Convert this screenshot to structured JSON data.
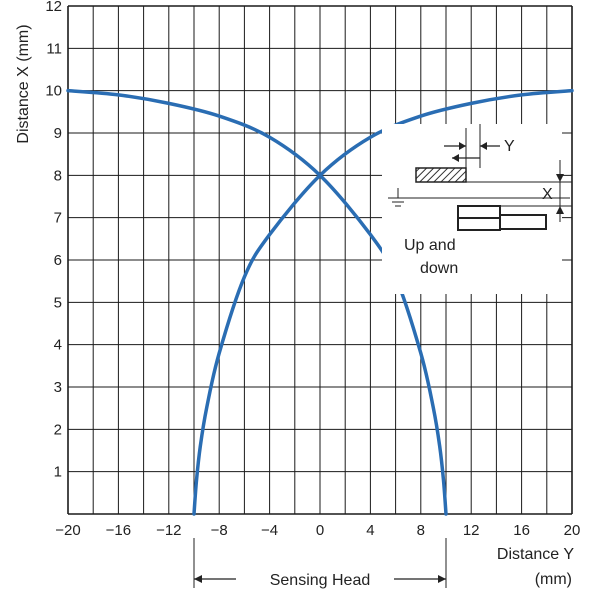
{
  "chart_data": {
    "type": "line",
    "xlabel": "Distance Y",
    "xlabel_unit": "(mm)",
    "ylabel": "Distance X (mm)",
    "xlim": [
      -20,
      20
    ],
    "ylim": [
      0,
      12
    ],
    "xticks": [
      -20,
      -16,
      -12,
      -8,
      -4,
      0,
      4,
      8,
      12,
      16,
      20
    ],
    "xtick_labels": [
      "−20",
      "−16",
      "−12",
      "−8",
      "−4",
      "0",
      "4",
      "8",
      "12",
      "16",
      "20"
    ],
    "yticks": [
      1,
      2,
      3,
      4,
      5,
      6,
      7,
      8,
      9,
      10,
      11,
      12
    ],
    "x_grid_step": 2,
    "y_grid_step": 1,
    "grid": true,
    "series_color": "#2a6db3",
    "series": [
      {
        "x": [
          -20,
          -16,
          -12,
          -8,
          -4,
          0,
          4,
          6,
          8,
          9,
          9.5,
          9.8,
          10
        ],
        "y": [
          10,
          9.9,
          9.7,
          9.4,
          8.9,
          8,
          6.6,
          5.6,
          3.8,
          2.5,
          1.6,
          0.8,
          0
        ]
      },
      {
        "x": [
          -10,
          -9.8,
          -9.5,
          -9,
          -8,
          -6,
          -4,
          0,
          4,
          8,
          12,
          16,
          20
        ],
        "y": [
          0,
          0.8,
          1.6,
          2.5,
          3.8,
          5.6,
          6.6,
          8,
          8.9,
          9.4,
          9.7,
          9.9,
          10
        ]
      }
    ],
    "annotation": {
      "sensing_head_label": "Sensing Head",
      "sensing_head_range": [
        -10,
        10
      ],
      "inset_y_label": "Y",
      "inset_x_label": "X",
      "inset_motion_label_1": "Up and",
      "inset_motion_label_2": "down"
    }
  }
}
